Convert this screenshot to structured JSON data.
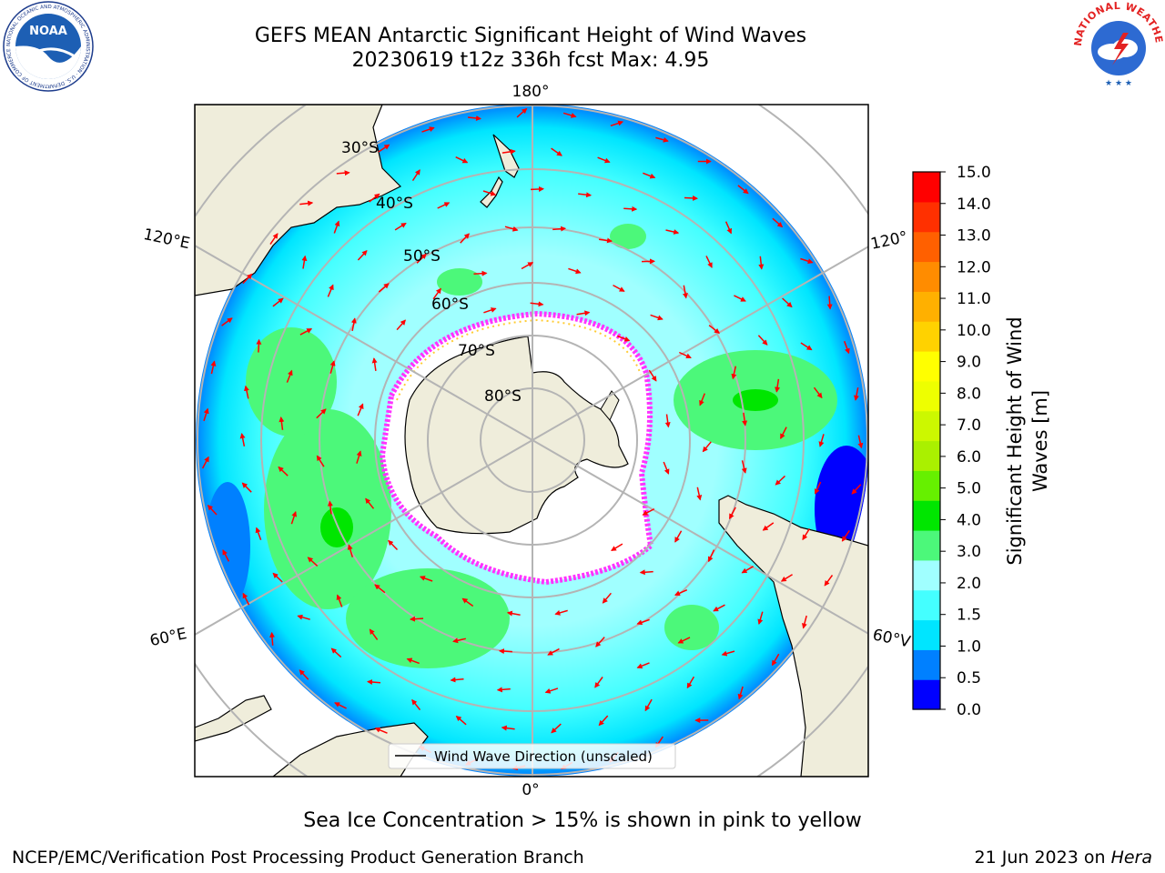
{
  "header": {
    "title_line1": "GEFS MEAN Antarctic Significant Height of Wind Waves",
    "title_line2": "20230619 t12z 336h fcst   Max: 4.95"
  },
  "logos": {
    "noaa": {
      "text": "NOAA",
      "ring_text": "NATIONAL OCEANIC AND ATMOSPHERIC ADMINISTRATION · U.S. DEPARTMENT OF COMMERCE ·"
    },
    "nws": {
      "ring_text": "NATIONAL WEATHER SERVICE"
    }
  },
  "map": {
    "projection": "south-polar-stereographic",
    "lat_labels": [
      "30°S",
      "40°S",
      "50°S",
      "60°S",
      "70°S",
      "80°S"
    ],
    "lon_labels": {
      "top": "180°",
      "bottom": "0°",
      "left_upper": "120°E",
      "left_lower": "60°E",
      "right_upper": "120°",
      "right_lower": "60°V"
    },
    "legend": "Wind Wave Direction (unscaled)",
    "colors": {
      "land": "#efeddb",
      "ice": "#ffffff",
      "arrow": "#ff0000",
      "grid": "#b4b4b4",
      "ice_edge_pink": "#ff33ff",
      "ice_edge_yellow": "#ffcc33"
    }
  },
  "colorbar": {
    "label_line1": "Significant Height of Wind",
    "label_line2": "Waves [m]",
    "ticks": [
      "0.0",
      "0.5",
      "1.0",
      "1.5",
      "2.0",
      "3.0",
      "4.0",
      "5.0",
      "6.0",
      "7.0",
      "8.0",
      "9.0",
      "10.0",
      "11.0",
      "12.0",
      "13.0",
      "14.0",
      "15.0"
    ],
    "colors": [
      "#0000ff",
      "#0080ff",
      "#00e5ff",
      "#44ffff",
      "#a0ffff",
      "#4cf87a",
      "#00e600",
      "#66f000",
      "#aaf000",
      "#ccf800",
      "#eeff00",
      "#ffff00",
      "#ffd200",
      "#ffb000",
      "#ff8c00",
      "#ff6000",
      "#ff3000",
      "#ff0000"
    ]
  },
  "footer": {
    "note": "Sea Ice Concentration > 15% is shown in pink to yellow",
    "credit": "NCEP/EMC/Verification Post Processing Product Generation Branch",
    "date": "21 Jun 2023 on ",
    "host": "Hera"
  }
}
